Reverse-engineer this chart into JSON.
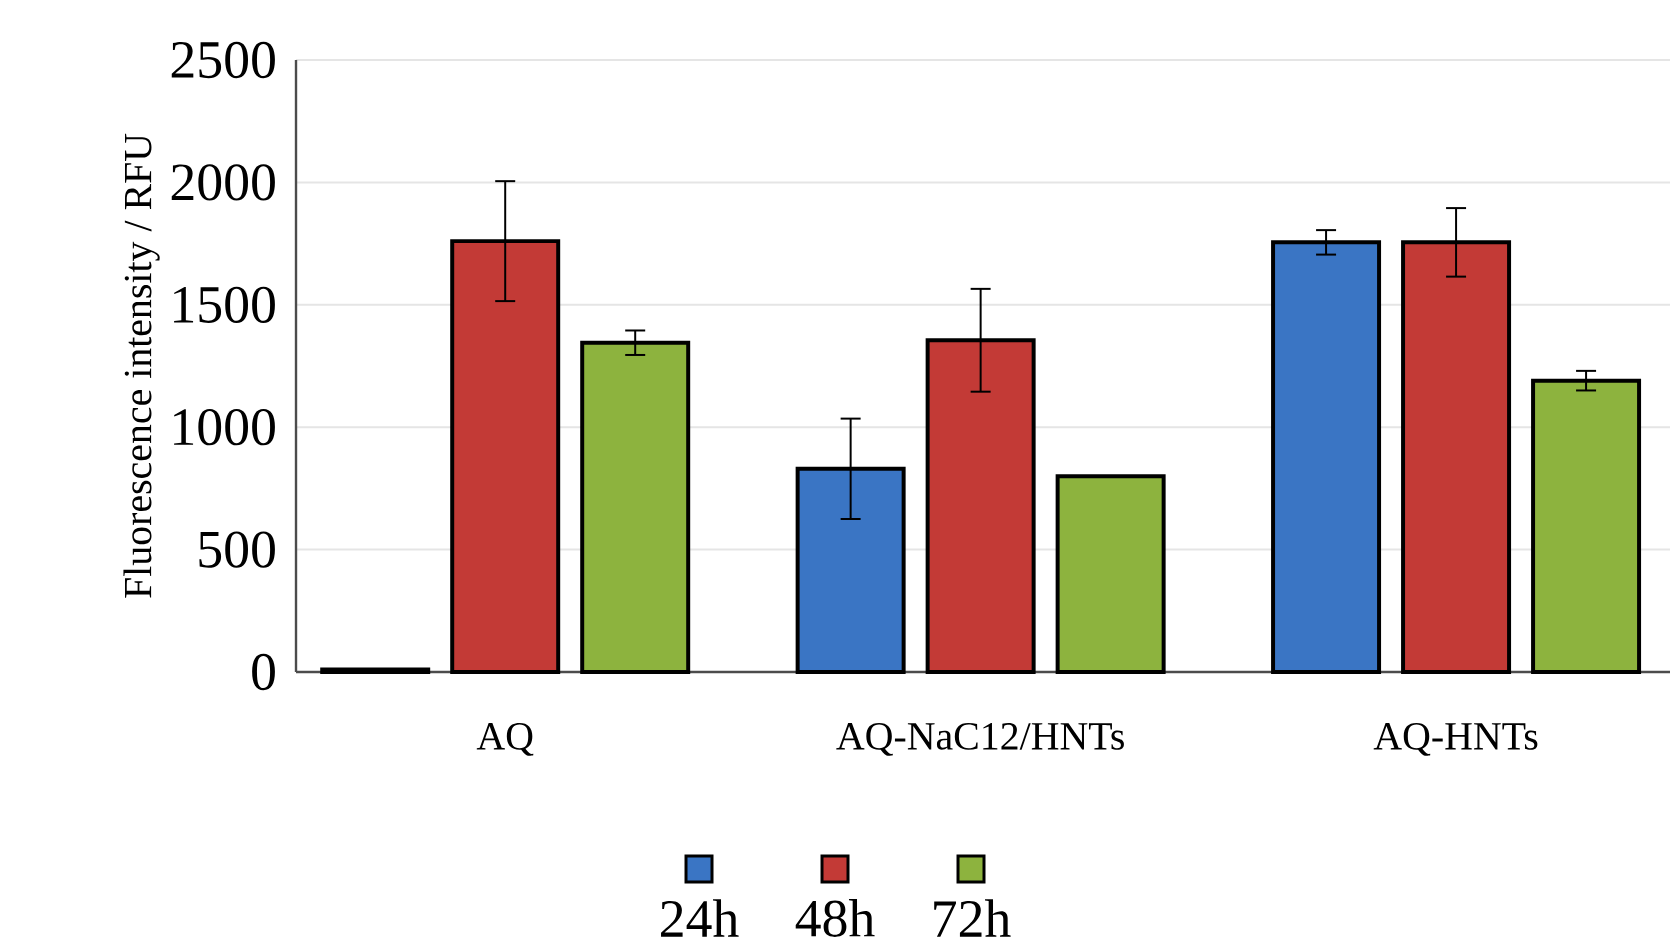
{
  "chart_data": {
    "type": "bar",
    "ylabel": "Fluorescence intensity / RFU",
    "categories": [
      "AQ",
      "AQ-NaC12/HNTs",
      "AQ-HNTs"
    ],
    "series": [
      {
        "name": "24h",
        "color": "#3a75c4",
        "values": [
          10,
          830,
          1755
        ],
        "errors": [
          null,
          205,
          50
        ]
      },
      {
        "name": "48h",
        "color": "#c33a36",
        "values": [
          1760,
          1355,
          1755
        ],
        "errors": [
          245,
          210,
          140
        ]
      },
      {
        "name": "72h",
        "color": "#8db33e",
        "values": [
          1345,
          800,
          1190
        ],
        "errors": [
          50,
          null,
          40
        ]
      }
    ],
    "ylim": [
      0,
      2500
    ],
    "yticks": [
      0,
      500,
      1000,
      1500,
      2000,
      2500
    ],
    "grid": "y",
    "legend": "bottom"
  }
}
